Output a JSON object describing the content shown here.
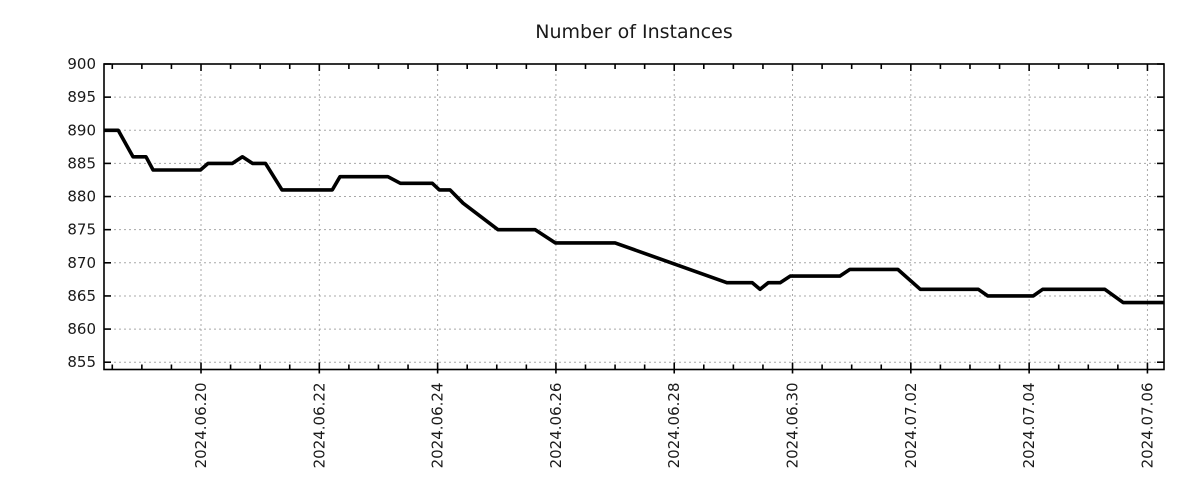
{
  "chart_data": {
    "type": "line",
    "title": "Number of Instances",
    "xlabel": "",
    "ylabel": "",
    "grid": true,
    "legend": "none",
    "colors": {
      "line": "#000000",
      "grid": "#a8a8a8",
      "axis": "#000000",
      "text": "#1a1a1a",
      "background": "#ffffff"
    },
    "y_ticks": [
      855,
      860,
      865,
      870,
      875,
      880,
      885,
      890,
      895,
      900
    ],
    "ylim": [
      853.9,
      900
    ],
    "x_ticks": [
      {
        "label": "2024.06.20",
        "day": 0
      },
      {
        "label": "2024.06.22",
        "day": 2
      },
      {
        "label": "2024.06.24",
        "day": 4
      },
      {
        "label": "2024.06.26",
        "day": 6
      },
      {
        "label": "2024.06.28",
        "day": 8
      },
      {
        "label": "2024.06.30",
        "day": 10
      },
      {
        "label": "2024.07.02",
        "day": 12
      },
      {
        "label": "2024.07.04",
        "day": 14
      },
      {
        "label": "2024.07.06",
        "day": 16
      }
    ],
    "xlim_days": [
      -1.64,
      16.28
    ],
    "x_minor_tick_step_days": 0.5,
    "x_major_grid_step_days": 2,
    "series": [
      {
        "name": "instances",
        "note": "x = days relative to 2024.06.20 00:00, y = number of instances; polyline breakpoints",
        "points": [
          [
            -1.64,
            890
          ],
          [
            -1.4,
            890
          ],
          [
            -1.15,
            886
          ],
          [
            -0.93,
            886
          ],
          [
            -0.81,
            884
          ],
          [
            -0.01,
            884
          ],
          [
            0.12,
            885
          ],
          [
            0.53,
            885
          ],
          [
            0.7,
            886
          ],
          [
            0.87,
            885
          ],
          [
            1.09,
            885
          ],
          [
            1.37,
            881
          ],
          [
            2.22,
            881
          ],
          [
            2.35,
            883
          ],
          [
            3.16,
            883
          ],
          [
            3.37,
            882
          ],
          [
            3.91,
            882
          ],
          [
            4.03,
            881
          ],
          [
            4.21,
            881
          ],
          [
            4.43,
            879
          ],
          [
            5.02,
            875
          ],
          [
            5.65,
            875
          ],
          [
            5.99,
            873
          ],
          [
            7.0,
            873
          ],
          [
            8.89,
            867
          ],
          [
            9.32,
            867
          ],
          [
            9.45,
            866
          ],
          [
            9.59,
            867
          ],
          [
            9.79,
            867
          ],
          [
            9.96,
            868
          ],
          [
            10.8,
            868
          ],
          [
            10.97,
            869
          ],
          [
            11.78,
            869
          ],
          [
            12.16,
            866
          ],
          [
            13.14,
            866
          ],
          [
            13.3,
            865
          ],
          [
            14.07,
            865
          ],
          [
            14.23,
            866
          ],
          [
            15.28,
            866
          ],
          [
            15.59,
            864
          ],
          [
            16.28,
            864
          ]
        ]
      }
    ]
  }
}
